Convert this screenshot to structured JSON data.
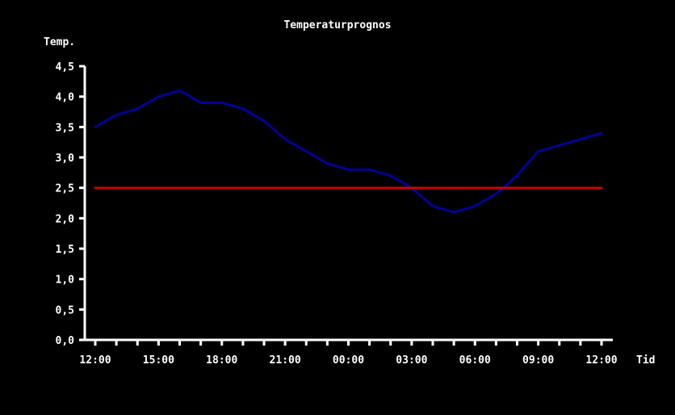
{
  "chart_data": {
    "type": "line",
    "title": "Temperaturprognos",
    "ylabel": "Temp.",
    "xlabel": "Tid",
    "ylim": [
      0,
      4.5
    ],
    "y_ticks": [
      "0,0",
      "0,5",
      "1,0",
      "1,5",
      "2,0",
      "2,5",
      "3,0",
      "3,5",
      "4,0",
      "4,5"
    ],
    "x_ticks": [
      "12:00",
      "15:00",
      "18:00",
      "21:00",
      "00:00",
      "03:00",
      "06:00",
      "09:00",
      "12:00"
    ],
    "x_hours": [
      12,
      13,
      14,
      15,
      16,
      17,
      18,
      19,
      20,
      21,
      22,
      23,
      24,
      25,
      26,
      27,
      28,
      29,
      30,
      31,
      32,
      33,
      34,
      35,
      36
    ],
    "series": [
      {
        "values": [
          3.5,
          3.7,
          3.8,
          4.0,
          4.1,
          3.9,
          3.9,
          3.8,
          3.6,
          3.3,
          3.1,
          2.9,
          2.8,
          2.8,
          2.7,
          2.5,
          2.2,
          2.1,
          2.2,
          2.4,
          2.7,
          3.1,
          3.2,
          3.3,
          3.4
        ],
        "color": "#000099"
      },
      {
        "values": [
          2.5,
          2.5
        ],
        "x_hours": [
          12,
          36
        ],
        "color": "#cc0000"
      }
    ],
    "axis_color": "#ffffff",
    "background": "#000000",
    "grid": false
  }
}
